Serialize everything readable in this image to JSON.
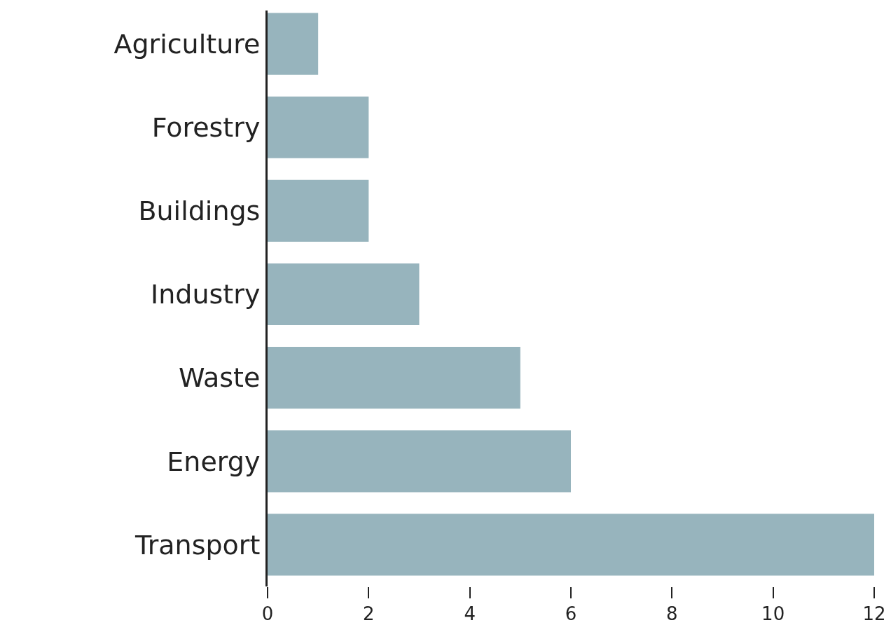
{
  "chart_data": {
    "type": "bar",
    "orientation": "horizontal",
    "categories": [
      "Agriculture",
      "Forestry",
      "Buildings",
      "Industry",
      "Waste",
      "Energy",
      "Transport"
    ],
    "values": [
      1,
      2,
      2,
      3,
      5,
      6,
      12
    ],
    "color": "#97b4bd",
    "xlim": [
      0,
      12
    ],
    "xticks": [
      0,
      2,
      4,
      6,
      8,
      10,
      12
    ],
    "grid": false
  }
}
